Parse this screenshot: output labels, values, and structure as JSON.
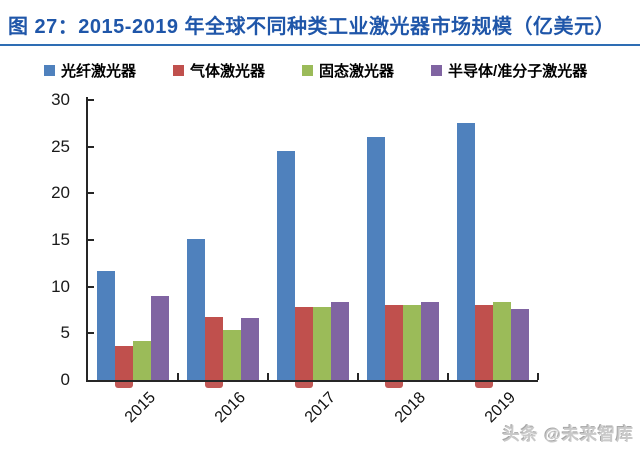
{
  "title": "图 27：2015-2019 年全球不同种类工业激光器市场规模（亿美元）",
  "watermark": "头条 @未来智库",
  "accent_colors": {
    "title_blue": "#1F56A9",
    "rule_blue": "#2E6DB4",
    "axis": "#262626"
  },
  "chart_data": {
    "type": "bar",
    "title": "2015-2019 年全球不同种类工业激光器市场规模（亿美元）",
    "categories": [
      "2015",
      "2016",
      "2017",
      "2018",
      "2019"
    ],
    "series": [
      {
        "name": "光纤激光器",
        "color": "#4F81BD",
        "values": [
          11.7,
          15.1,
          24.5,
          26.0,
          27.5
        ]
      },
      {
        "name": "气体激光器",
        "color": "#C0504D",
        "values": [
          3.6,
          6.7,
          7.8,
          8.0,
          8.0
        ]
      },
      {
        "name": "固态激光器",
        "color": "#9BBB59",
        "values": [
          4.2,
          5.4,
          7.8,
          8.0,
          8.4
        ]
      },
      {
        "name": "半导体/准分子激光器",
        "color": "#8064A2",
        "values": [
          9.0,
          6.6,
          8.4,
          8.4,
          7.6
        ]
      }
    ],
    "ylim": [
      0,
      30
    ],
    "ytick_step": 5,
    "xlabel": "",
    "ylabel": "",
    "legend_position": "top",
    "grid": false
  }
}
